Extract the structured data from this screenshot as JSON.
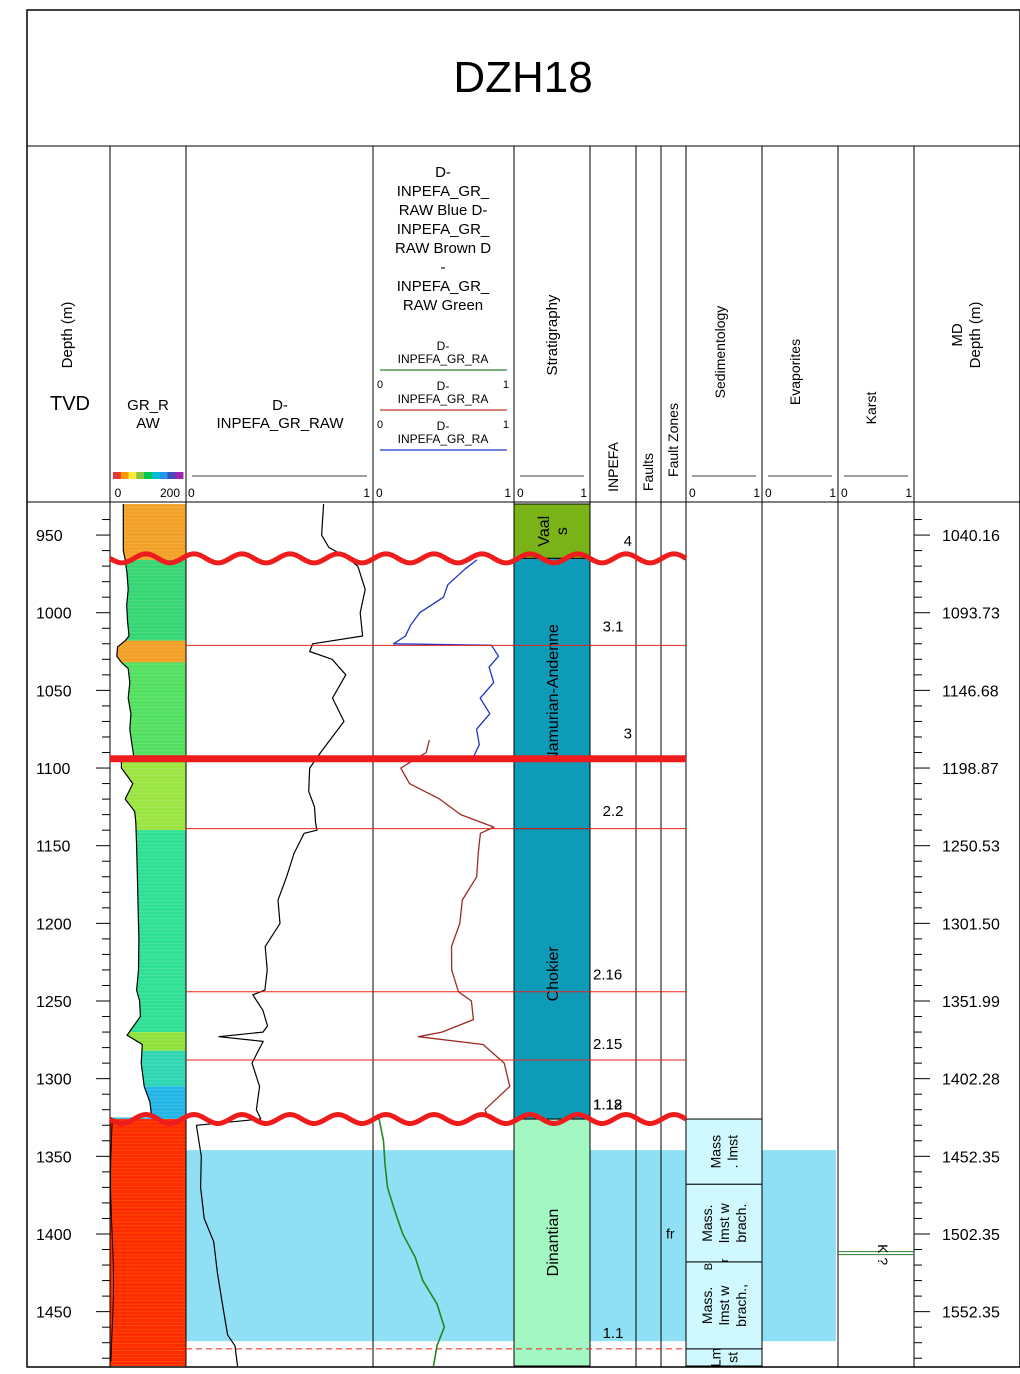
{
  "well_name": "DZH18",
  "columns": {
    "tvd": {
      "title": "Depth (m)",
      "sub": "TVD"
    },
    "gr_raw": {
      "title_lines": [
        "GR_R",
        "AW"
      ],
      "scale_min": "0",
      "scale_max": "200"
    },
    "inpefa_gr_raw": {
      "title_lines": [
        "D-",
        "INPEFA_GR_RAW"
      ],
      "scale_min": "0",
      "scale_max": "1"
    },
    "inpefa_split": {
      "title_lines": [
        "D-",
        "INPEFA_GR_",
        "RAW Blue D-",
        "INPEFA_GR_",
        "RAW Brown D",
        "-",
        "INPEFA_GR_",
        "RAW Green"
      ],
      "legend": [
        {
          "name_lines": [
            "D-",
            "INPEFA_GR_RA"
          ],
          "min": "0",
          "max": "1",
          "color": "#2e7d32"
        },
        {
          "name_lines": [
            "D-",
            "INPEFA_GR_RA"
          ],
          "min": "0",
          "max": "1",
          "color": "#c0392b"
        },
        {
          "name_lines": [
            "D-",
            "INPEFA_GR_RA"
          ],
          "min": "0",
          "max": "1",
          "color": "#1a35c9"
        }
      ],
      "scale_min": "0",
      "scale_max": "1"
    },
    "stratigraphy": {
      "title": "Stratigraphy",
      "scale_min": "0",
      "scale_max": "1"
    },
    "inpefa": {
      "title": "INPEFA"
    },
    "faults": {
      "title": "Faults"
    },
    "fault_zones": {
      "title": "Fault Zones"
    },
    "sedimentology": {
      "title": "Sedimentology",
      "scale_min": "0",
      "scale_max": "1"
    },
    "evaporites": {
      "title": "Evaporites",
      "scale_min": "0",
      "scale_max": "1"
    },
    "karst": {
      "title": "Karst",
      "scale_min": "0",
      "scale_max": "1"
    },
    "md": {
      "title_lines": [
        "MD",
        "Depth (m)"
      ]
    }
  },
  "chart_data": {
    "type": "well-log",
    "depth_range_tvd": [
      930,
      1485
    ],
    "tvd_ticks": [
      950,
      1000,
      1050,
      1100,
      1150,
      1200,
      1250,
      1300,
      1350,
      1400,
      1450
    ],
    "md_ticks": [
      {
        "tvd": 950,
        "label": "1040.16"
      },
      {
        "tvd": 1000,
        "label": "1093.73"
      },
      {
        "tvd": 1050,
        "label": "1146.68"
      },
      {
        "tvd": 1100,
        "label": "1198.87"
      },
      {
        "tvd": 1150,
        "label": "1250.53"
      },
      {
        "tvd": 1200,
        "label": "1301.50"
      },
      {
        "tvd": 1250,
        "label": "1351.99"
      },
      {
        "tvd": 1300,
        "label": "1402.28"
      },
      {
        "tvd": 1350,
        "label": "1452.35"
      },
      {
        "tvd": 1400,
        "label": "1502.35"
      },
      {
        "tvd": 1450,
        "label": "1552.35"
      }
    ],
    "unconformities_tvd": [
      965,
      1326
    ],
    "major_boundary_tvd": 1094,
    "inpefa_boundaries": [
      {
        "tvd": 1021,
        "style": "solid"
      },
      {
        "tvd": 1139,
        "style": "solid"
      },
      {
        "tvd": 1244,
        "style": "solid"
      },
      {
        "tvd": 1288,
        "style": "solid"
      },
      {
        "tvd": 1474,
        "style": "dashed"
      }
    ],
    "inpefa_labels": [
      {
        "tvd": 957,
        "label": "4",
        "align": "right"
      },
      {
        "tvd": 1012,
        "label": "3.1",
        "align": "center"
      },
      {
        "tvd": 1081,
        "label": "3",
        "align": "right"
      },
      {
        "tvd": 1131,
        "label": "2.2",
        "align": "center"
      },
      {
        "tvd": 1236,
        "label": "2.16",
        "align": "left"
      },
      {
        "tvd": 1281,
        "label": "2.15",
        "align": "left"
      },
      {
        "tvd": 1320,
        "label": "1.12",
        "align": "left"
      },
      {
        "tvd": 1320,
        "label": "1.18",
        "align": "left"
      },
      {
        "tvd": 1467,
        "label": "1.1",
        "align": "center"
      }
    ],
    "stratigraphy": [
      {
        "name": "Vaal s",
        "label_lines": [
          "Vaal",
          "s"
        ],
        "top": 930,
        "base": 965,
        "color": "#7ab317"
      },
      {
        "name": "Namurian-Andenne",
        "label_lines": [
          "Namurian-Andenne"
        ],
        "top": 965,
        "base": 1139,
        "color": "#0e9bb8"
      },
      {
        "name": "Chokier",
        "label_lines": [
          "Chokier"
        ],
        "top": 1139,
        "base": 1326,
        "color": "#0e9bb8"
      },
      {
        "name": "Dinantian",
        "label_lines": [
          "Dinantian"
        ],
        "top": 1326,
        "base": 1485,
        "color": "#a2f7c2"
      }
    ],
    "sedimentology": [
      {
        "label_lines": [
          "Mass",
          ". lmst"
        ],
        "top": 1326,
        "base": 1368
      },
      {
        "label_lines": [
          "Mass.",
          "lmst w",
          "brach."
        ],
        "top": 1368,
        "base": 1418
      },
      {
        "label_lines": [
          "Mass.",
          "lmst w",
          "brach.,"
        ],
        "top": 1418,
        "base": 1474
      },
      {
        "label_lines": [
          "Lm",
          "st"
        ],
        "top": 1474,
        "base": 1485
      }
    ],
    "sedimentology_extra_text": [
      "B",
      "r"
    ],
    "fault_zone_label": {
      "tvd": 1403,
      "label": "fr"
    },
    "karst_marker": {
      "tvd": 1412,
      "label": "K ?"
    },
    "dinantian_shade": {
      "top": 1346,
      "base": 1469
    },
    "gr_raw_profile": {
      "min": 0,
      "max": 200,
      "points": [
        [
          930,
          35
        ],
        [
          945,
          35
        ],
        [
          960,
          35
        ],
        [
          966,
          40
        ],
        [
          975,
          45
        ],
        [
          985,
          48
        ],
        [
          995,
          44
        ],
        [
          1005,
          46
        ],
        [
          1015,
          50
        ],
        [
          1018,
          40
        ],
        [
          1022,
          20
        ],
        [
          1028,
          18
        ],
        [
          1032,
          30
        ],
        [
          1036,
          48
        ],
        [
          1045,
          52
        ],
        [
          1055,
          48
        ],
        [
          1065,
          55
        ],
        [
          1075,
          52
        ],
        [
          1085,
          58
        ],
        [
          1092,
          62
        ],
        [
          1096,
          30
        ],
        [
          1100,
          30
        ],
        [
          1110,
          60
        ],
        [
          1120,
          40
        ],
        [
          1128,
          65
        ],
        [
          1135,
          68
        ],
        [
          1150,
          70
        ],
        [
          1170,
          72
        ],
        [
          1190,
          74
        ],
        [
          1210,
          76
        ],
        [
          1230,
          75
        ],
        [
          1243,
          70
        ],
        [
          1250,
          78
        ],
        [
          1260,
          80
        ],
        [
          1272,
          45
        ],
        [
          1278,
          85
        ],
        [
          1290,
          82
        ],
        [
          1305,
          90
        ],
        [
          1315,
          105
        ],
        [
          1325,
          110
        ]
      ]
    },
    "gr_color_bands": [
      {
        "top": 930,
        "base": 966,
        "color": "#f2a026"
      },
      {
        "top": 966,
        "base": 1018,
        "color": "#35d673"
      },
      {
        "top": 1018,
        "base": 1032,
        "color": "#f2a026"
      },
      {
        "top": 1032,
        "base": 1096,
        "color": "#52e060"
      },
      {
        "top": 1096,
        "base": 1140,
        "color": "#9be540"
      },
      {
        "top": 1140,
        "base": 1270,
        "color": "#2ee094"
      },
      {
        "top": 1270,
        "base": 1282,
        "color": "#8fe23a"
      },
      {
        "top": 1282,
        "base": 1305,
        "color": "#2fd6b4"
      },
      {
        "top": 1305,
        "base": 1326,
        "color": "#22b6e6"
      },
      {
        "top": 1326,
        "base": 1485,
        "color": "#ff2a00"
      }
    ],
    "gr_colorbar": [
      "#e53935",
      "#ff9800",
      "#ffeb3b",
      "#8bc34a",
      "#00c853",
      "#00bcd4",
      "#2196f3",
      "#3f51b5",
      "#9c27b0"
    ],
    "inpefa_raw_profile": {
      "min": 0,
      "max": 1,
      "points": [
        [
          930,
          0.74
        ],
        [
          950,
          0.75
        ],
        [
          958,
          0.78
        ],
        [
          964,
          0.88
        ],
        [
          970,
          0.95
        ],
        [
          985,
          0.96
        ],
        [
          1000,
          0.97
        ],
        [
          1015,
          0.95
        ],
        [
          1020,
          0.68
        ],
        [
          1025,
          0.68
        ],
        [
          1030,
          0.8
        ],
        [
          1040,
          0.85
        ],
        [
          1055,
          0.82
        ],
        [
          1070,
          0.84
        ],
        [
          1090,
          0.72
        ],
        [
          1100,
          0.67
        ],
        [
          1115,
          0.65
        ],
        [
          1125,
          0.68
        ],
        [
          1135,
          0.7
        ],
        [
          1140,
          0.72
        ],
        [
          1142,
          0.66
        ],
        [
          1155,
          0.58
        ],
        [
          1170,
          0.53
        ],
        [
          1185,
          0.51
        ],
        [
          1200,
          0.48
        ],
        [
          1215,
          0.44
        ],
        [
          1230,
          0.42
        ],
        [
          1243,
          0.41
        ],
        [
          1246,
          0.36
        ],
        [
          1256,
          0.4
        ],
        [
          1266,
          0.45
        ],
        [
          1270,
          0.42
        ],
        [
          1273,
          0.15
        ],
        [
          1276,
          0.42
        ],
        [
          1290,
          0.37
        ],
        [
          1305,
          0.37
        ],
        [
          1320,
          0.38
        ],
        [
          1326,
          0.4
        ],
        [
          1330,
          0.02
        ],
        [
          1350,
          0.05
        ],
        [
          1370,
          0.06
        ],
        [
          1390,
          0.08
        ],
        [
          1405,
          0.12
        ],
        [
          1425,
          0.15
        ],
        [
          1445,
          0.18
        ],
        [
          1465,
          0.2
        ],
        [
          1472,
          0.24
        ],
        [
          1485,
          0.26
        ]
      ]
    },
    "inpefa_blue": {
      "min": 0,
      "max": 1,
      "points": [
        [
          966,
          0.75
        ],
        [
          972,
          0.66
        ],
        [
          982,
          0.55
        ],
        [
          990,
          0.5
        ],
        [
          1000,
          0.34
        ],
        [
          1008,
          0.25
        ],
        [
          1015,
          0.2
        ],
        [
          1020,
          0.12
        ],
        [
          1021,
          0.85
        ],
        [
          1028,
          0.9
        ],
        [
          1035,
          0.85
        ],
        [
          1045,
          0.88
        ],
        [
          1055,
          0.8
        ],
        [
          1065,
          0.85
        ],
        [
          1075,
          0.76
        ],
        [
          1085,
          0.78
        ],
        [
          1092,
          0.74
        ]
      ]
    },
    "inpefa_brown": {
      "min": 0,
      "max": 1,
      "points": [
        [
          1082,
          0.38
        ],
        [
          1090,
          0.36
        ],
        [
          1100,
          0.18
        ],
        [
          1110,
          0.26
        ],
        [
          1120,
          0.47
        ],
        [
          1130,
          0.65
        ],
        [
          1138,
          0.88
        ],
        [
          1142,
          0.8
        ],
        [
          1155,
          0.76
        ],
        [
          1170,
          0.74
        ],
        [
          1185,
          0.66
        ],
        [
          1200,
          0.6
        ],
        [
          1215,
          0.58
        ],
        [
          1230,
          0.55
        ],
        [
          1244,
          0.6
        ],
        [
          1250,
          0.7
        ],
        [
          1262,
          0.72
        ],
        [
          1270,
          0.5
        ],
        [
          1273,
          0.3
        ],
        [
          1278,
          0.82
        ],
        [
          1290,
          0.98
        ],
        [
          1305,
          0.98
        ],
        [
          1320,
          0.82
        ],
        [
          1326,
          0.85
        ]
      ]
    },
    "inpefa_green": {
      "min": 0,
      "max": 1,
      "points": [
        [
          1326,
          0.02
        ],
        [
          1340,
          0.05
        ],
        [
          1355,
          0.06
        ],
        [
          1370,
          0.08
        ],
        [
          1385,
          0.13
        ],
        [
          1400,
          0.2
        ],
        [
          1415,
          0.28
        ],
        [
          1430,
          0.35
        ],
        [
          1445,
          0.45
        ],
        [
          1460,
          0.5
        ],
        [
          1472,
          0.44
        ],
        [
          1485,
          0.42
        ]
      ]
    }
  }
}
